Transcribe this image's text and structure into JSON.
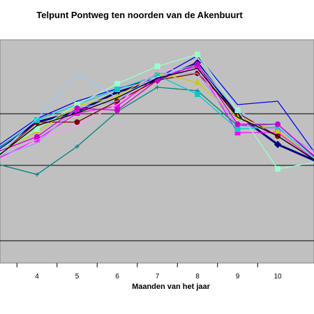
{
  "chart_data": {
    "type": "line",
    "title": "Telpunt Pontweg ten noorden van de Akenbuurt",
    "xlabel": "Maanden van het jaar",
    "ylabel": "",
    "x": [
      3,
      4,
      5,
      6,
      7,
      8,
      9,
      10,
      11
    ],
    "x_tick_labels": [
      "4",
      "5",
      "6",
      "7",
      "8",
      "9",
      "10"
    ],
    "legend": "none",
    "grid": "horizontal",
    "series": [
      {
        "color": "#000080",
        "marker": "diamond",
        "bold": true,
        "values": [
          215,
          175,
          160,
          132,
          115,
          90,
          165,
          207,
          232
        ]
      },
      {
        "color": "#0000ff",
        "marker": "none",
        "values": [
          210,
          170,
          145,
          127,
          112,
          80,
          150,
          145,
          225
        ]
      },
      {
        "color": "#ff00ff",
        "marker": "square",
        "values": [
          228,
          200,
          162,
          152,
          110,
          95,
          190,
          190,
          232
        ]
      },
      {
        "color": "#800000",
        "marker": "circle",
        "values": [
          225,
          175,
          175,
          145,
          115,
          105,
          162,
          195,
          232
        ]
      },
      {
        "color": "#cccc00",
        "marker": "triangle",
        "values": [
          220,
          188,
          152,
          138,
          105,
          118,
          168,
          188,
          230
        ]
      },
      {
        "color": "#008080",
        "marker": "plus",
        "values": [
          235,
          250,
          210,
          160,
          125,
          130,
          180,
          178,
          230
        ]
      },
      {
        "color": "#00cccc",
        "marker": "square",
        "values": [
          215,
          172,
          150,
          128,
          108,
          135,
          185,
          182,
          232
        ]
      },
      {
        "color": "#99ffcc",
        "marker": "square",
        "values": [
          222,
          185,
          150,
          120,
          95,
          78,
          158,
          242,
          232
        ]
      },
      {
        "color": "#ff99ff",
        "marker": "none",
        "values": [
          232,
          200,
          180,
          150,
          100,
          100,
          175,
          178,
          225
        ]
      },
      {
        "color": "#9999ff",
        "marker": "none",
        "values": [
          225,
          205,
          155,
          145,
          105,
          105,
          180,
          185,
          220
        ]
      },
      {
        "color": "#99ccff",
        "marker": "none",
        "values": [
          222,
          170,
          105,
          140,
          110,
          92,
          160,
          180,
          232
        ]
      },
      {
        "color": "#cc00cc",
        "marker": "circle",
        "values": [
          218,
          196,
          155,
          158,
          115,
          92,
          178,
          178,
          228
        ]
      },
      {
        "color": "#000000",
        "marker": "none",
        "values": [
          225,
          180,
          162,
          140,
          112,
          98,
          168,
          195,
          232
        ]
      }
    ]
  }
}
